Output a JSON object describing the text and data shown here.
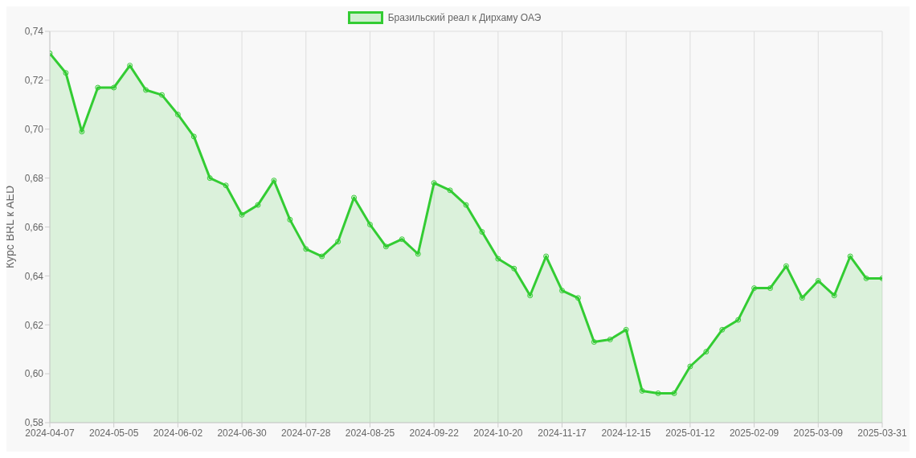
{
  "chart_data": {
    "type": "area",
    "ylabel": "Курс BRL к AED",
    "categories": [
      "2024-04-07",
      null,
      null,
      null,
      "2024-05-05",
      null,
      null,
      null,
      "2024-06-02",
      null,
      null,
      null,
      "2024-06-30",
      null,
      null,
      null,
      "2024-07-28",
      null,
      null,
      null,
      "2024-08-25",
      null,
      null,
      null,
      "2024-09-22",
      null,
      null,
      null,
      "2024-10-20",
      null,
      null,
      null,
      "2024-11-17",
      null,
      null,
      null,
      "2024-12-15",
      null,
      null,
      null,
      "2025-01-12",
      null,
      null,
      null,
      "2025-02-09",
      null,
      null,
      null,
      "2025-03-09",
      null,
      null,
      null,
      "2025-03-31"
    ],
    "series": [
      {
        "name": "Бразильский реал к Дирхаму ОАЭ",
        "color": "#33cc33",
        "values": [
          0.731,
          0.723,
          0.699,
          0.717,
          0.717,
          0.726,
          0.716,
          0.714,
          0.706,
          0.697,
          0.68,
          0.677,
          0.665,
          0.669,
          0.679,
          0.663,
          0.651,
          0.648,
          0.654,
          0.672,
          0.661,
          0.652,
          0.655,
          0.649,
          0.678,
          0.675,
          0.669,
          0.658,
          0.647,
          0.643,
          0.632,
          0.648,
          0.634,
          0.631,
          0.613,
          0.614,
          0.618,
          0.593,
          0.592,
          0.592,
          0.603,
          0.609,
          0.618,
          0.622,
          0.635,
          0.635,
          0.644,
          0.631,
          0.638,
          0.632,
          0.648,
          0.639,
          0.639
        ]
      }
    ],
    "ylim": [
      0.58,
      0.74
    ],
    "yticks": [
      {
        "value": 0.58,
        "label": "0,58"
      },
      {
        "value": 0.6,
        "label": "0,60"
      },
      {
        "value": 0.62,
        "label": "0,62"
      },
      {
        "value": 0.64,
        "label": "0,64"
      },
      {
        "value": 0.66,
        "label": "0,66"
      },
      {
        "value": 0.68,
        "label": "0,68"
      },
      {
        "value": 0.7,
        "label": "0,70"
      },
      {
        "value": 0.72,
        "label": "0,72"
      },
      {
        "value": 0.74,
        "label": "0,74"
      }
    ],
    "grid": true,
    "legend": "top",
    "marker": "circle",
    "line_style": "solid"
  }
}
